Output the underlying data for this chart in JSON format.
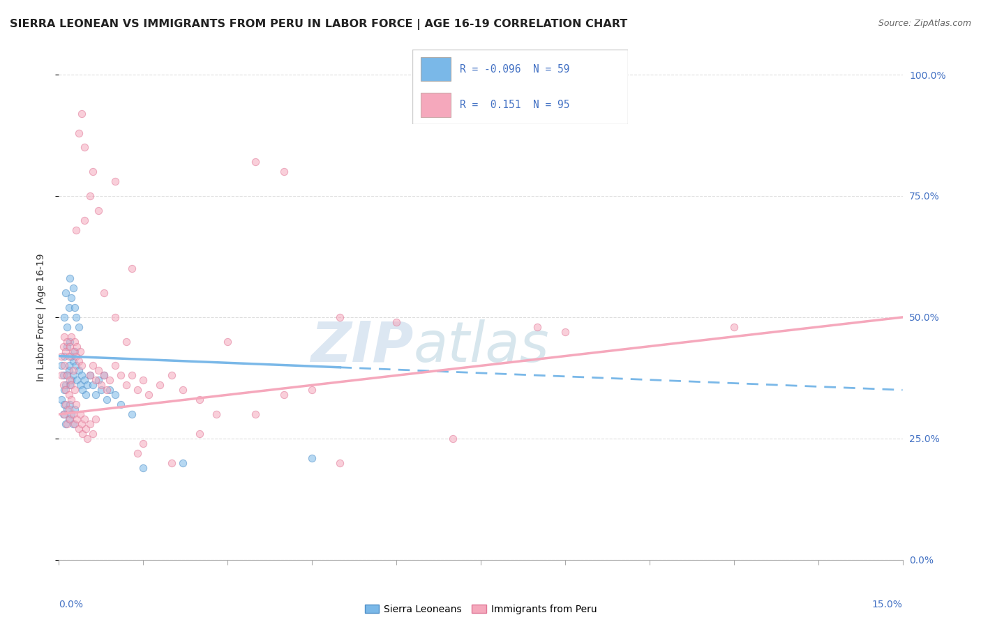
{
  "title": "SIERRA LEONEAN VS IMMIGRANTS FROM PERU IN LABOR FORCE | AGE 16-19 CORRELATION CHART",
  "source": "Source: ZipAtlas.com",
  "ylabel_label": "In Labor Force | Age 16-19",
  "xlim": [
    0.0,
    15.0
  ],
  "ylim": [
    0.0,
    100.0
  ],
  "watermark_zip": "ZIP",
  "watermark_atlas": "atlas",
  "legend": {
    "r1": -0.096,
    "n1": 59,
    "r2": 0.151,
    "n2": 95
  },
  "blue_scatter": [
    [
      0.05,
      40
    ],
    [
      0.08,
      38
    ],
    [
      0.1,
      42
    ],
    [
      0.12,
      36
    ],
    [
      0.15,
      44
    ],
    [
      0.18,
      39
    ],
    [
      0.2,
      45
    ],
    [
      0.22,
      37
    ],
    [
      0.25,
      41
    ],
    [
      0.28,
      43
    ],
    [
      0.1,
      35
    ],
    [
      0.15,
      38
    ],
    [
      0.18,
      40
    ],
    [
      0.2,
      36
    ],
    [
      0.22,
      42
    ],
    [
      0.25,
      38
    ],
    [
      0.3,
      40
    ],
    [
      0.32,
      37
    ],
    [
      0.35,
      39
    ],
    [
      0.38,
      36
    ],
    [
      0.4,
      38
    ],
    [
      0.42,
      35
    ],
    [
      0.45,
      37
    ],
    [
      0.48,
      34
    ],
    [
      0.5,
      36
    ],
    [
      0.1,
      50
    ],
    [
      0.12,
      55
    ],
    [
      0.15,
      48
    ],
    [
      0.18,
      52
    ],
    [
      0.2,
      58
    ],
    [
      0.22,
      54
    ],
    [
      0.25,
      56
    ],
    [
      0.28,
      52
    ],
    [
      0.3,
      50
    ],
    [
      0.35,
      48
    ],
    [
      0.05,
      33
    ],
    [
      0.08,
      30
    ],
    [
      0.1,
      32
    ],
    [
      0.12,
      28
    ],
    [
      0.15,
      31
    ],
    [
      0.18,
      29
    ],
    [
      0.2,
      32
    ],
    [
      0.22,
      30
    ],
    [
      0.25,
      28
    ],
    [
      0.28,
      31
    ],
    [
      0.55,
      38
    ],
    [
      0.6,
      36
    ],
    [
      0.65,
      34
    ],
    [
      0.7,
      37
    ],
    [
      0.75,
      35
    ],
    [
      0.8,
      38
    ],
    [
      0.85,
      33
    ],
    [
      0.9,
      35
    ],
    [
      1.0,
      34
    ],
    [
      1.1,
      32
    ],
    [
      1.3,
      30
    ],
    [
      1.5,
      19
    ],
    [
      2.2,
      20
    ],
    [
      4.5,
      21
    ]
  ],
  "pink_scatter": [
    [
      0.05,
      38
    ],
    [
      0.08,
      36
    ],
    [
      0.1,
      40
    ],
    [
      0.12,
      35
    ],
    [
      0.15,
      38
    ],
    [
      0.18,
      34
    ],
    [
      0.2,
      37
    ],
    [
      0.22,
      36
    ],
    [
      0.25,
      39
    ],
    [
      0.28,
      35
    ],
    [
      0.1,
      30
    ],
    [
      0.12,
      32
    ],
    [
      0.15,
      28
    ],
    [
      0.18,
      31
    ],
    [
      0.2,
      29
    ],
    [
      0.22,
      33
    ],
    [
      0.25,
      30
    ],
    [
      0.28,
      28
    ],
    [
      0.3,
      32
    ],
    [
      0.32,
      29
    ],
    [
      0.35,
      27
    ],
    [
      0.38,
      30
    ],
    [
      0.4,
      28
    ],
    [
      0.42,
      26
    ],
    [
      0.45,
      29
    ],
    [
      0.48,
      27
    ],
    [
      0.5,
      25
    ],
    [
      0.55,
      28
    ],
    [
      0.6,
      26
    ],
    [
      0.65,
      29
    ],
    [
      0.05,
      42
    ],
    [
      0.08,
      44
    ],
    [
      0.1,
      46
    ],
    [
      0.12,
      43
    ],
    [
      0.15,
      45
    ],
    [
      0.18,
      42
    ],
    [
      0.2,
      44
    ],
    [
      0.22,
      46
    ],
    [
      0.25,
      43
    ],
    [
      0.28,
      45
    ],
    [
      0.3,
      42
    ],
    [
      0.32,
      44
    ],
    [
      0.35,
      41
    ],
    [
      0.38,
      43
    ],
    [
      0.4,
      40
    ],
    [
      0.55,
      38
    ],
    [
      0.6,
      40
    ],
    [
      0.65,
      37
    ],
    [
      0.7,
      39
    ],
    [
      0.75,
      36
    ],
    [
      0.8,
      38
    ],
    [
      0.85,
      35
    ],
    [
      0.9,
      37
    ],
    [
      1.0,
      40
    ],
    [
      1.1,
      38
    ],
    [
      1.2,
      36
    ],
    [
      1.3,
      38
    ],
    [
      1.4,
      35
    ],
    [
      1.5,
      37
    ],
    [
      1.6,
      34
    ],
    [
      1.8,
      36
    ],
    [
      2.0,
      38
    ],
    [
      2.2,
      35
    ],
    [
      2.5,
      33
    ],
    [
      0.55,
      75
    ],
    [
      0.6,
      80
    ],
    [
      0.7,
      72
    ],
    [
      1.0,
      78
    ],
    [
      3.5,
      82
    ],
    [
      4.0,
      80
    ],
    [
      5.0,
      50
    ],
    [
      0.35,
      88
    ],
    [
      0.4,
      92
    ],
    [
      0.45,
      85
    ],
    [
      6.0,
      49
    ],
    [
      8.5,
      48
    ],
    [
      9.0,
      47
    ],
    [
      1.3,
      60
    ],
    [
      1.4,
      22
    ],
    [
      1.5,
      24
    ],
    [
      2.5,
      26
    ],
    [
      3.0,
      45
    ],
    [
      3.5,
      30
    ],
    [
      4.0,
      34
    ],
    [
      5.0,
      20
    ],
    [
      7.0,
      25
    ],
    [
      0.8,
      55
    ],
    [
      1.0,
      50
    ],
    [
      1.2,
      45
    ],
    [
      2.0,
      20
    ],
    [
      2.8,
      30
    ],
    [
      4.5,
      35
    ],
    [
      0.3,
      68
    ],
    [
      0.45,
      70
    ],
    [
      12.0,
      48
    ]
  ],
  "blue_line": {
    "x0": 0.0,
    "y0": 42.0,
    "x1": 15.0,
    "y1": 35.0,
    "solid_end_x": 5.0
  },
  "pink_line": {
    "x0": 0.0,
    "y0": 30.0,
    "x1": 15.0,
    "y1": 50.0
  },
  "scatter_alpha": 0.55,
  "scatter_size": 55,
  "scatter_edgewidth": 0.8,
  "blue_color": "#7ab8e8",
  "pink_color": "#f5a8bc",
  "blue_edge": "#5090c8",
  "pink_edge": "#e07898",
  "grid_color": "#dddddd",
  "ytick_color": "#4472c4",
  "xtick_label_color": "#4472c4",
  "legend_r_color": "#4472c4"
}
